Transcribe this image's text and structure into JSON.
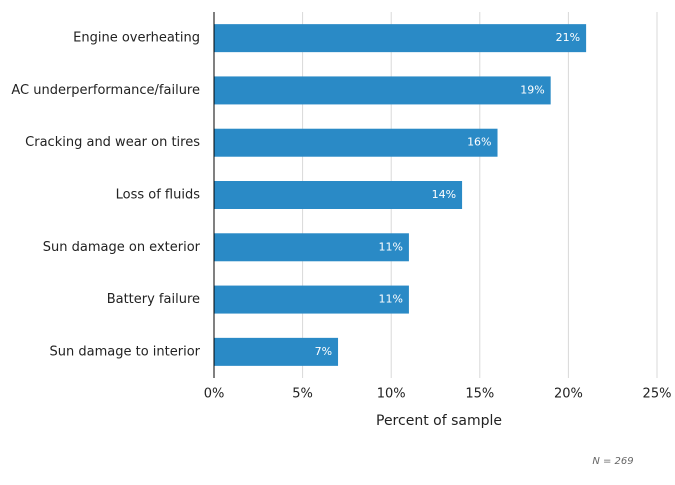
{
  "chart_data": {
    "type": "bar",
    "orientation": "horizontal",
    "categories": [
      "Engine overheating",
      "AC underperformance/failure",
      "Cracking and wear on tires",
      "Loss of fluids",
      "Sun damage on exterior",
      "Battery failure",
      "Sun damage to interior"
    ],
    "values": [
      21,
      19,
      16,
      14,
      11,
      11,
      7
    ],
    "value_labels": [
      "21%",
      "19%",
      "16%",
      "14%",
      "11%",
      "11%",
      "7%"
    ],
    "color": "#2a8ac6",
    "xlim": [
      0,
      25
    ],
    "xticks": [
      {
        "value": 0,
        "label": "0%"
      },
      {
        "value": 5,
        "label": "5%"
      },
      {
        "value": 10,
        "label": "10%"
      },
      {
        "value": 15,
        "label": "15%"
      },
      {
        "value": 20,
        "label": "20%"
      },
      {
        "value": 25,
        "label": "25%"
      }
    ],
    "xlabel": "Percent of sample",
    "note": "N = 269",
    "grid": true
  }
}
